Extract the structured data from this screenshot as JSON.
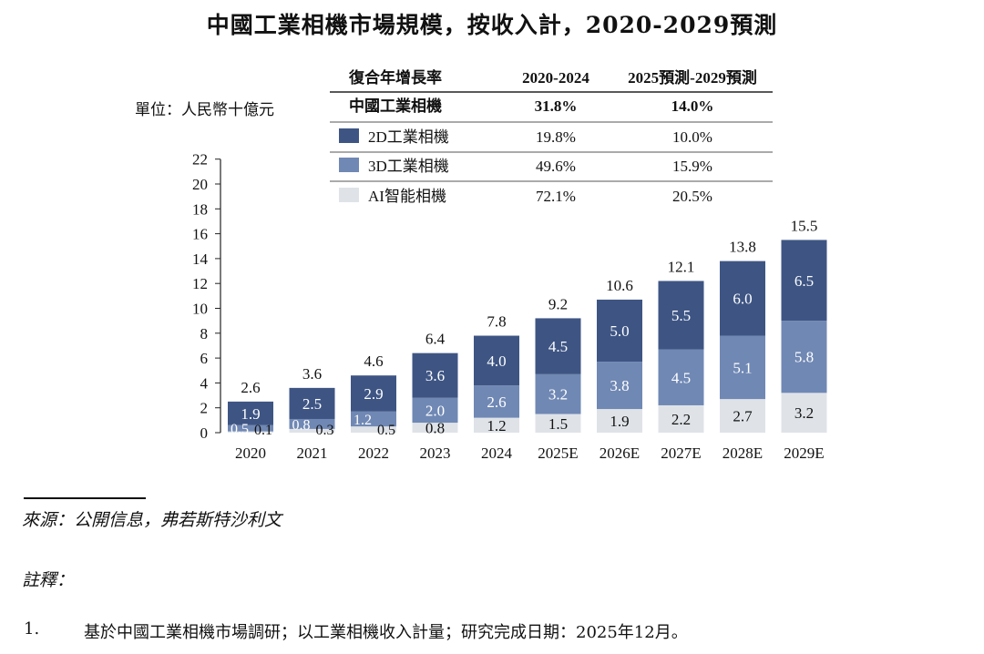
{
  "title": "中國工業相機市場規模，按收入計，2020-2029預測",
  "unit_label": "單位：人民幣十億元",
  "cagr_table": {
    "headers": [
      "復合年增長率",
      "2020-2024",
      "2025預測-2029預測"
    ],
    "rows": [
      {
        "label": "中國工業相機",
        "v1": "31.8%",
        "v2": "14.0%",
        "bold": true,
        "swatch": ""
      },
      {
        "label": "2D工業相機",
        "v1": "19.8%",
        "v2": "10.0%",
        "bold": false,
        "swatch": "#3e5584"
      },
      {
        "label": "3D工業相機",
        "v1": "49.6%",
        "v2": "15.9%",
        "bold": false,
        "swatch": "#7088b4"
      },
      {
        "label": "AI智能相機",
        "v1": "72.1%",
        "v2": "20.5%",
        "bold": false,
        "swatch": "#dfe3e8"
      }
    ]
  },
  "chart_data": {
    "type": "bar",
    "stacked": true,
    "categories": [
      "2020",
      "2021",
      "2022",
      "2023",
      "2024",
      "2025E",
      "2026E",
      "2027E",
      "2028E",
      "2029E"
    ],
    "series": [
      {
        "name": "AI智能相機",
        "color": "#dfe3e8",
        "values": [
          0.1,
          0.3,
          0.5,
          0.8,
          1.2,
          1.5,
          1.9,
          2.2,
          2.7,
          3.2
        ]
      },
      {
        "name": "3D工業相機",
        "color": "#7088b4",
        "values": [
          0.5,
          0.8,
          1.2,
          2.0,
          2.6,
          3.2,
          3.8,
          4.5,
          5.1,
          5.8
        ]
      },
      {
        "name": "2D工業相機",
        "color": "#3e5584",
        "values": [
          1.9,
          2.5,
          2.9,
          3.6,
          4.0,
          4.5,
          5.0,
          5.5,
          6.0,
          6.5
        ]
      }
    ],
    "totals": [
      2.6,
      3.6,
      4.6,
      6.4,
      7.8,
      9.2,
      10.6,
      12.1,
      13.8,
      15.5
    ],
    "yticks": [
      0,
      2,
      4,
      6,
      8,
      10,
      12,
      14,
      16,
      18,
      20,
      22
    ],
    "ylim": [
      0,
      22
    ],
    "ylabel": "單位：人民幣十億元",
    "xlabel": ""
  },
  "source": "來源：公開信息，弗若斯特沙利文",
  "notes": {
    "heading": "註釋：",
    "items": [
      {
        "num": "1.",
        "text": "基於中國工業相機市場調研；以工業相機收入計量；研究完成日期：2025年12月。"
      }
    ]
  }
}
